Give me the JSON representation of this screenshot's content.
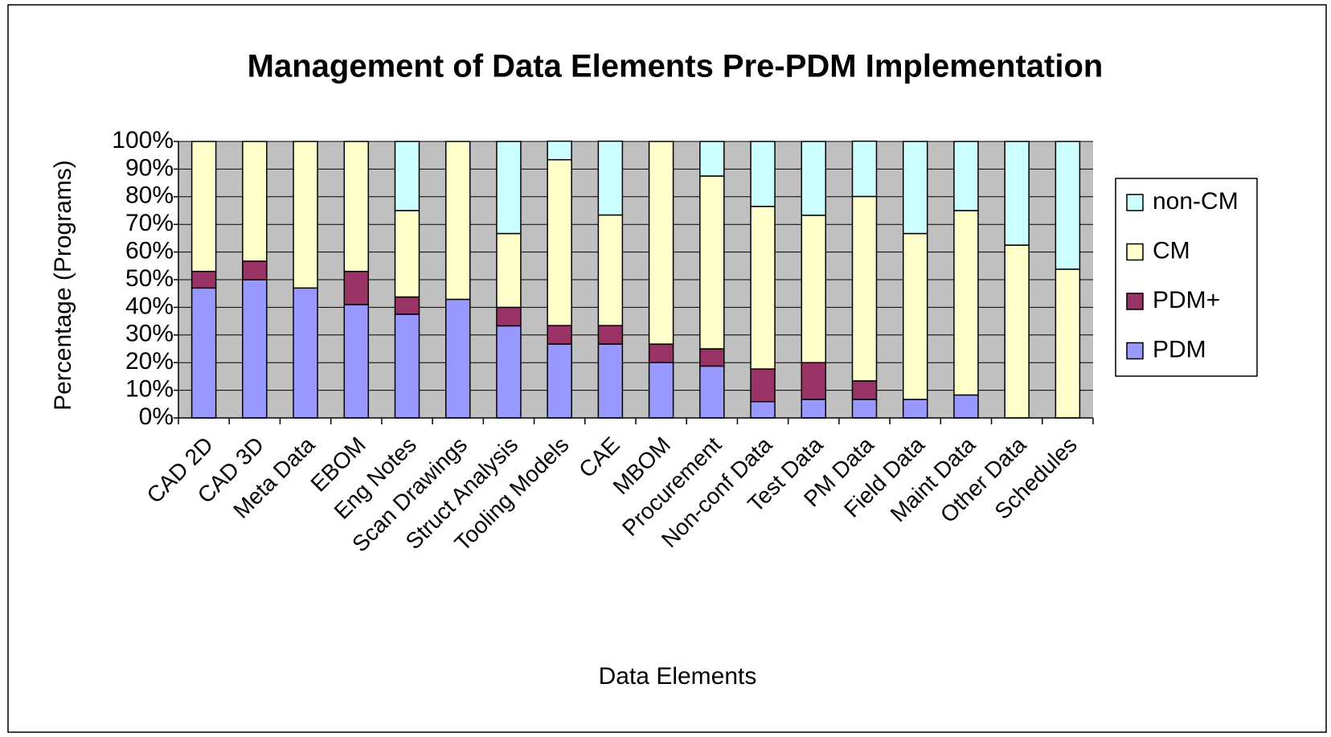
{
  "chart_data": {
    "type": "stacked_bar",
    "title": "Management of Data Elements Pre-PDM Implementation",
    "x_label": "Data Elements",
    "y_label": "Percentage (Programs)",
    "categories": [
      "CAD 2D",
      "CAD 3D",
      "Meta Data",
      "EBOM",
      "Eng Notes",
      "Scan Drawings",
      "Struct Analysis",
      "Tooling Models",
      "CAE",
      "MBOM",
      "Procurement",
      "Non-conf Data",
      "Test Data",
      "PM Data",
      "Field Data",
      "Maint Data",
      "Other Data",
      "Schedules"
    ],
    "series": [
      {
        "name": "PDM",
        "color": "#9999ff",
        "values": [
          47,
          50,
          47,
          41,
          37.5,
          42.9,
          33.3,
          26.7,
          26.7,
          20,
          18.75,
          5.9,
          6.7,
          6.7,
          6.7,
          8.3,
          0,
          0
        ]
      },
      {
        "name": "PDM+",
        "color": "#993366",
        "values": [
          6,
          6.7,
          0,
          12,
          6.25,
          0,
          6.7,
          6.7,
          6.7,
          6.7,
          6.25,
          11.8,
          13.3,
          6.7,
          0,
          0,
          0,
          0
        ]
      },
      {
        "name": "CM",
        "color": "#ffffcc",
        "values": [
          47,
          43.3,
          53,
          47,
          31.25,
          57.1,
          26.7,
          60,
          40,
          73.3,
          62.5,
          58.8,
          53.3,
          66.7,
          60,
          66.7,
          62.5,
          53.8
        ]
      },
      {
        "name": "non-CM",
        "color": "#ccffff",
        "values": [
          0,
          0,
          0,
          0,
          25,
          0,
          33.3,
          6.7,
          26.7,
          0,
          12.5,
          23.5,
          26.7,
          20,
          33.3,
          25,
          37.5,
          46.2
        ]
      }
    ],
    "ylim": [
      0,
      100
    ],
    "yticks": [
      {
        "value": 0,
        "label": "0%"
      },
      {
        "value": 10,
        "label": "10%"
      },
      {
        "value": 20,
        "label": "20%"
      },
      {
        "value": 30,
        "label": "30%"
      },
      {
        "value": 40,
        "label": "40%"
      },
      {
        "value": 50,
        "label": "50%"
      },
      {
        "value": 60,
        "label": "60%"
      },
      {
        "value": 70,
        "label": "70%"
      },
      {
        "value": 80,
        "label": "80%"
      },
      {
        "value": 90,
        "label": "90%"
      },
      {
        "value": 100,
        "label": "100%"
      }
    ],
    "grid": true,
    "legend": "right"
  }
}
